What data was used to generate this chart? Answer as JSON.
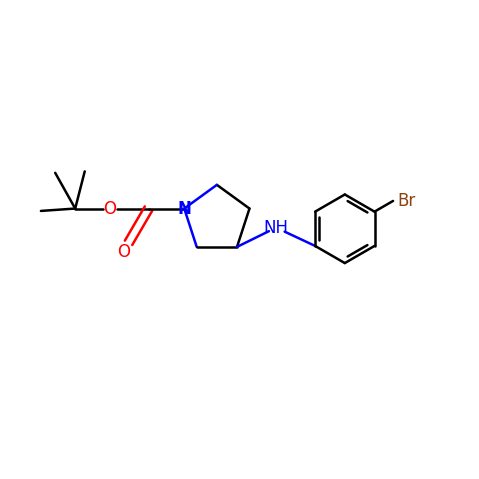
{
  "bg_color": "#ffffff",
  "bond_color": "#000000",
  "bond_width": 1.8,
  "n_color": "#0000ff",
  "o_color": "#ff0000",
  "br_color": "#8b4513",
  "figsize": [
    4.79,
    4.79
  ],
  "dpi": 100,
  "xlim": [
    0,
    10
  ],
  "ylim": [
    0,
    10
  ],
  "font_size": 12
}
